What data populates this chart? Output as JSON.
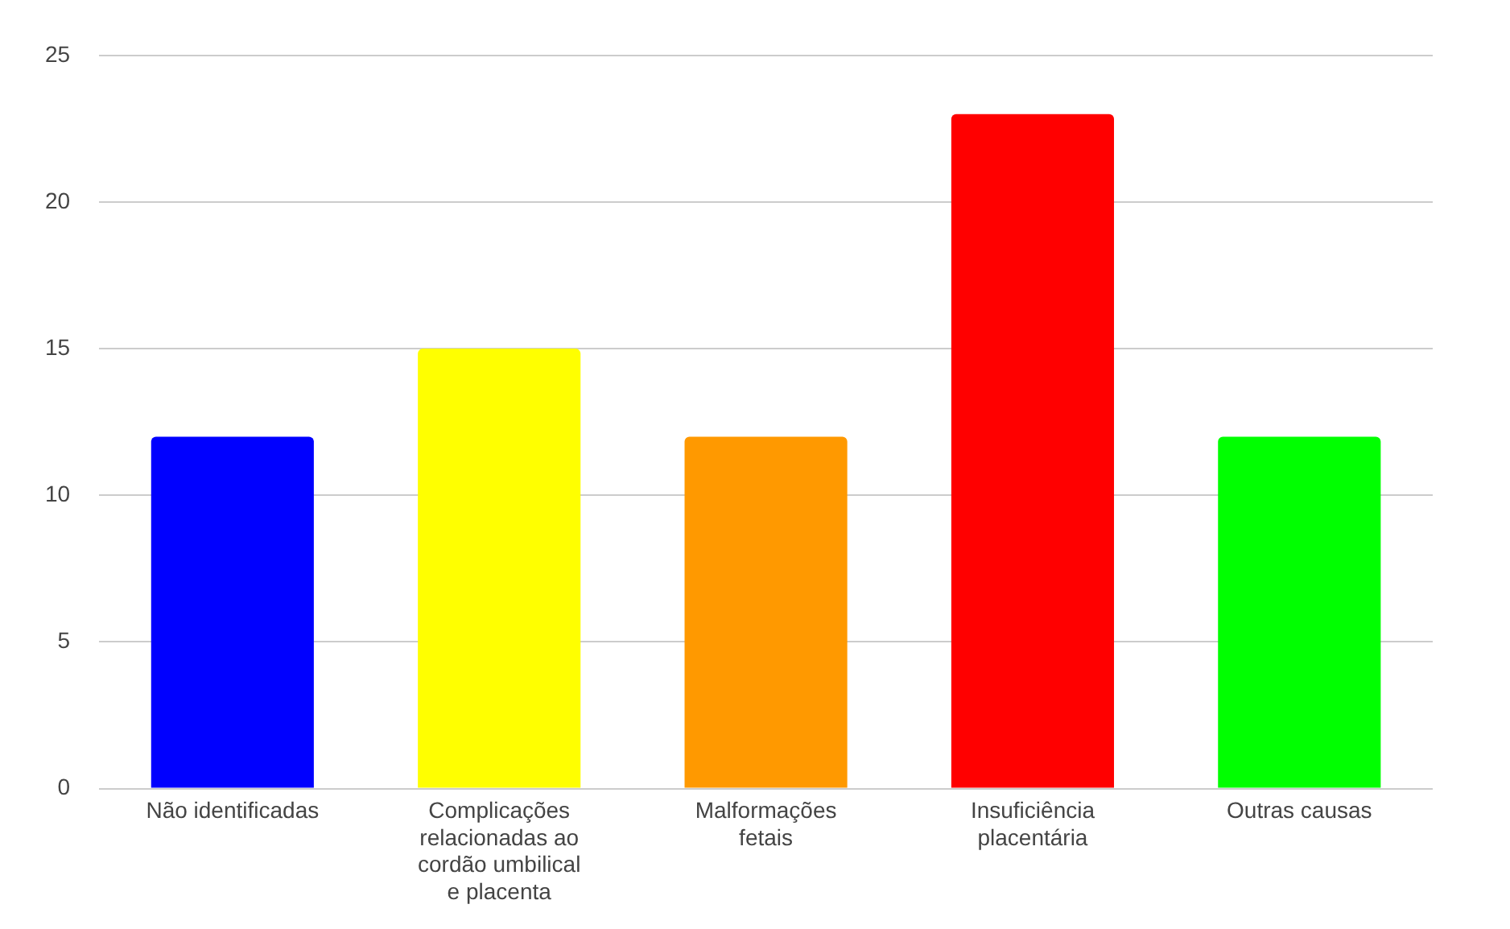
{
  "chart_data": {
    "type": "bar",
    "categories": [
      "Não identificadas",
      "Complicações relacionadas ao cordão umbilical e placenta",
      "Malformações fetais",
      "Insuficiência placentária",
      "Outras causas"
    ],
    "values": [
      12,
      15,
      12,
      23,
      12
    ],
    "colors": [
      "#0000ff",
      "#ffff00",
      "#ff9900",
      "#ff0000",
      "#00ff00"
    ],
    "ylim": [
      0,
      25
    ],
    "yticks": [
      0,
      5,
      10,
      15,
      20,
      25
    ],
    "grid": "y",
    "legend": false
  }
}
